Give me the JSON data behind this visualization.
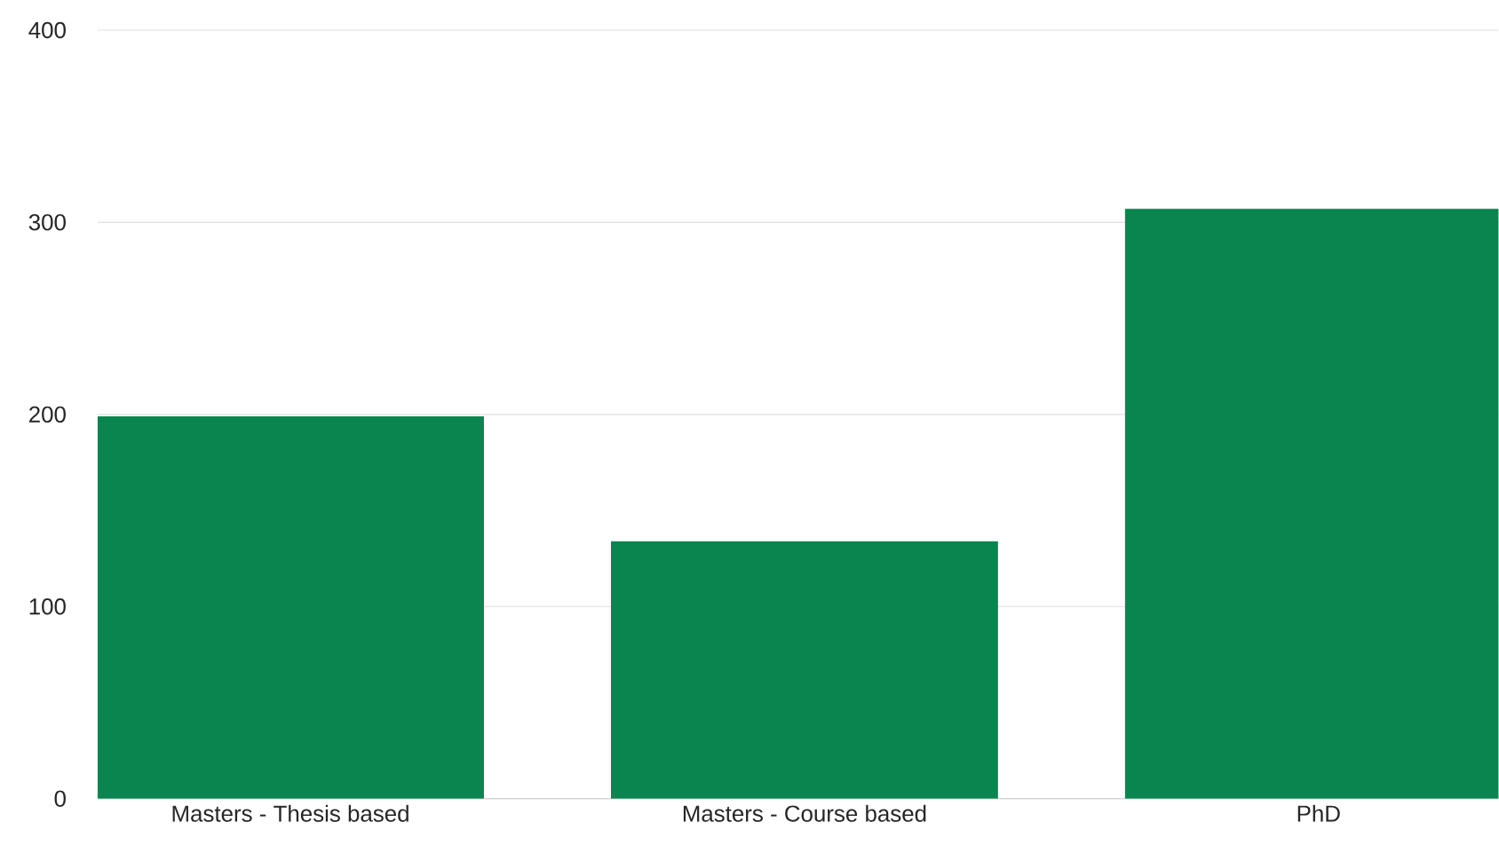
{
  "chart_data": {
    "type": "bar",
    "categories": [
      "Masters - Thesis based",
      "Masters - Course based",
      "PhD"
    ],
    "values": [
      199,
      134,
      307
    ],
    "color": "#0a8550",
    "ylim": [
      0,
      400
    ],
    "yticks": [
      0,
      100,
      200,
      300,
      400
    ],
    "grid": "y"
  }
}
